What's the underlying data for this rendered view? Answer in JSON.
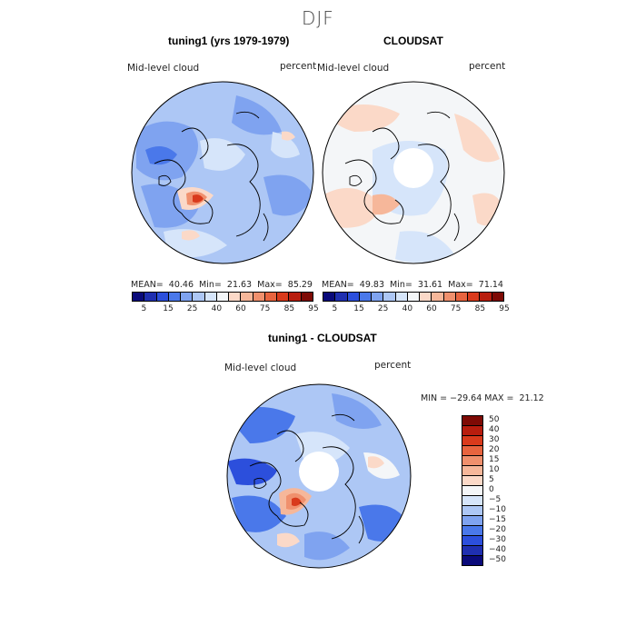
{
  "season": "DJF",
  "panel_left": {
    "title": "tuning1 (yrs 1979-1979)",
    "variable": "Mid-level cloud",
    "units": "percent",
    "stats": "MEAN=  40.46  Min=  21.63  Max=  85.29"
  },
  "panel_right": {
    "title": "CLOUDSAT",
    "variable": "Mid-level cloud",
    "units": "percent",
    "stats": "MEAN=  49.83  Min=  31.61  Max=  71.14"
  },
  "panel_diff": {
    "title": "tuning1 - CLOUDSAT",
    "variable": "Mid-level cloud",
    "units": "percent",
    "stats": "MIN = −29.64 MAX =  21.12"
  },
  "colorbar_top": {
    "labels": [
      "5",
      "15",
      "25",
      "40",
      "60",
      "75",
      "85",
      "95"
    ],
    "colors": [
      "#0a0a7a",
      "#1f2fb0",
      "#2c4fdc",
      "#4a78ea",
      "#7fa3f0",
      "#adc7f5",
      "#d6e5fa",
      "#f4f6f8",
      "#fbd9c8",
      "#f6b79a",
      "#f0906d",
      "#e8643f",
      "#d93a1c",
      "#b81d0e",
      "#7e0a05"
    ]
  },
  "colorbar_diff": {
    "labels": [
      "50",
      "40",
      "30",
      "20",
      "15",
      "10",
      "5",
      "0",
      "−5",
      "−10",
      "−15",
      "−20",
      "−30",
      "−40",
      "−50"
    ],
    "colors": [
      "#7e0a05",
      "#b81d0e",
      "#d93a1c",
      "#e8643f",
      "#f0906d",
      "#f6b79a",
      "#fbd9c8",
      "#f4f6f8",
      "#d6e5fa",
      "#adc7f5",
      "#7fa3f0",
      "#4a78ea",
      "#2c4fdc",
      "#1f2fb0",
      "#0a0a7a"
    ]
  }
}
